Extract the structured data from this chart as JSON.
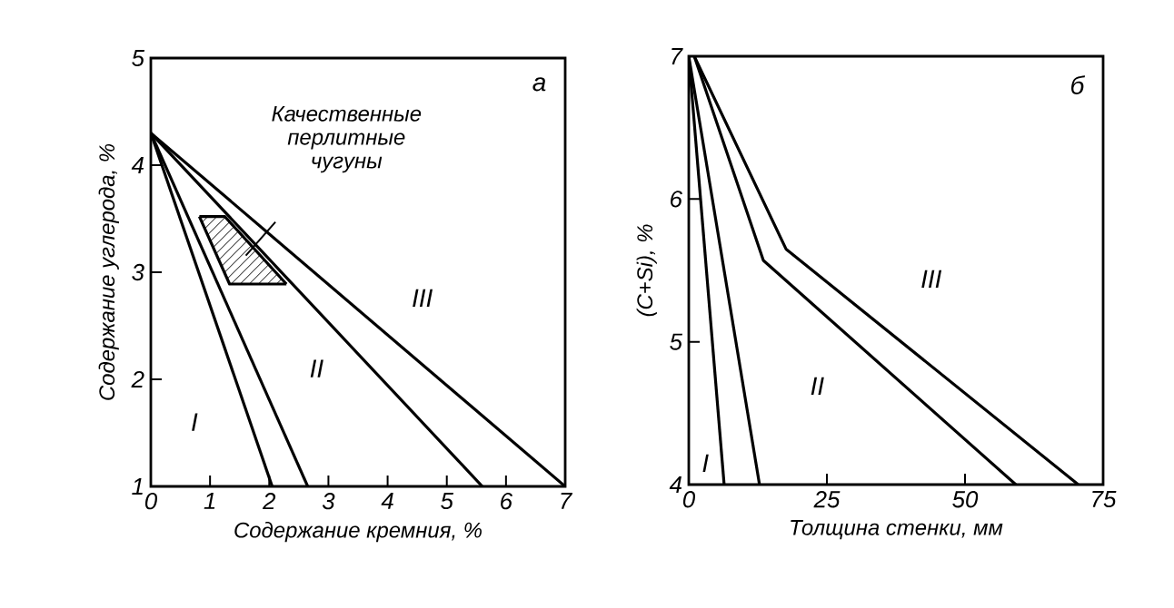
{
  "chart_data": [
    {
      "type": "line",
      "xlabel": "Содержание кремния, %",
      "ylabel": "Содержание углерода, %",
      "xlim": [
        0,
        7
      ],
      "ylim": [
        1,
        5
      ],
      "xticks": [
        0,
        1,
        2,
        3,
        4,
        5,
        6,
        7
      ],
      "yticks": [
        1,
        2,
        3,
        4,
        5
      ],
      "marker": "none",
      "line_style": "solid",
      "grid": false,
      "series": [
        {
          "color": "#000000",
          "x": [
            0,
            2.05
          ],
          "values": [
            4.3,
            1
          ]
        },
        {
          "color": "#000000",
          "x": [
            0,
            2.65
          ],
          "values": [
            4.3,
            1
          ]
        },
        {
          "color": "#000000",
          "x": [
            0,
            5.6
          ],
          "values": [
            4.3,
            1
          ]
        },
        {
          "color": "#000000",
          "x": [
            0,
            7
          ],
          "values": [
            4.3,
            1
          ]
        },
        {
          "name": "Качественные перлитные чугуны",
          "color": "#000000",
          "x": [
            0.82,
            1.25,
            2.29
          ],
          "values": [
            3.52,
            3.52,
            2.89
          ]
        },
        {
          "color": "#000000",
          "x": [
            0.82,
            1.33,
            2.29
          ],
          "values": [
            3.52,
            2.89,
            2.89
          ]
        }
      ],
      "annotations": [
        "I",
        "II",
        "III",
        "а"
      ]
    },
    {
      "type": "line",
      "xlabel": "Толщина стенки, мм",
      "ylabel": "(C+Si), %",
      "xlim": [
        0,
        75
      ],
      "ylim": [
        4,
        7
      ],
      "xticks": [
        0,
        25,
        50,
        75
      ],
      "yticks": [
        4,
        5,
        6,
        7
      ],
      "marker": "none",
      "line_style": "solid",
      "grid": false,
      "series": [
        {
          "color": "#000000",
          "x": [
            0,
            6.4
          ],
          "values": [
            7,
            4
          ]
        },
        {
          "color": "#000000",
          "x": [
            0,
            12.8
          ],
          "values": [
            7,
            4
          ]
        },
        {
          "color": "#000000",
          "x": [
            1,
            13.5,
            59.2
          ],
          "values": [
            7,
            5.57,
            4
          ]
        },
        {
          "color": "#000000",
          "x": [
            1,
            17.6,
            70.5
          ],
          "values": [
            7,
            5.65,
            4
          ]
        }
      ],
      "annotations": [
        "I",
        "II",
        "III",
        "б"
      ]
    }
  ]
}
